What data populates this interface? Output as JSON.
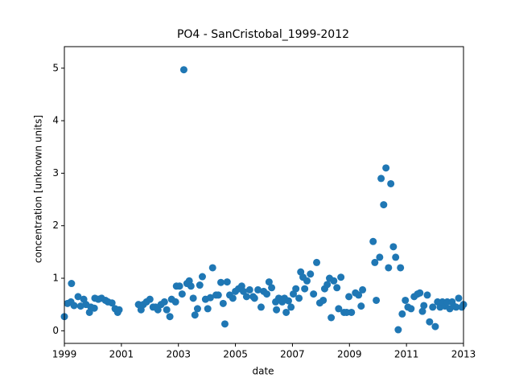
{
  "chart_data": {
    "type": "scatter",
    "title": "PO4 - SanCristobal_1999-2012",
    "x_label": "date",
    "y_label": "concentration [unknown units]",
    "color": "#1f77b4",
    "x": [
      1999.0,
      1999.11,
      1999.23,
      1999.25,
      1999.34,
      1999.48,
      1999.57,
      1999.68,
      1999.76,
      1999.88,
      1999.93,
      2000.05,
      2000.07,
      2000.19,
      2000.3,
      2000.44,
      2000.53,
      2000.67,
      2000.78,
      2000.87,
      2000.92,
      2001.6,
      2001.69,
      2001.77,
      2001.88,
      2002.0,
      2002.11,
      2002.2,
      2002.28,
      2002.39,
      2002.51,
      2002.59,
      2002.7,
      2002.76,
      2002.9,
      2002.93,
      2003.04,
      2003.13,
      2003.19,
      2003.3,
      2003.38,
      2003.44,
      2003.52,
      2003.58,
      2003.67,
      2003.75,
      2003.84,
      2003.95,
      2004.03,
      2004.12,
      2004.2,
      2004.32,
      2004.4,
      2004.49,
      2004.57,
      2004.63,
      2004.71,
      2004.8,
      2004.91,
      2005.0,
      2005.11,
      2005.22,
      2005.28,
      2005.39,
      2005.5,
      2005.62,
      2005.67,
      2005.79,
      2005.9,
      2005.99,
      2006.1,
      2006.18,
      2006.27,
      2006.41,
      2006.44,
      2006.52,
      2006.64,
      2006.72,
      2006.78,
      2006.86,
      2006.95,
      2007.03,
      2007.12,
      2007.23,
      2007.29,
      2007.37,
      2007.43,
      2007.51,
      2007.63,
      2007.74,
      2007.85,
      2007.96,
      2008.08,
      2008.13,
      2008.22,
      2008.3,
      2008.36,
      2008.45,
      2008.56,
      2008.62,
      2008.7,
      2008.81,
      2008.9,
      2008.98,
      2009.07,
      2009.21,
      2009.32,
      2009.41,
      2009.46,
      2009.83,
      2009.89,
      2009.94,
      2010.06,
      2010.11,
      2010.2,
      2010.28,
      2010.37,
      2010.45,
      2010.54,
      2010.62,
      2010.71,
      2010.79,
      2010.85,
      2010.96,
      2011.05,
      2011.16,
      2011.27,
      2011.39,
      2011.47,
      2011.56,
      2011.61,
      2011.73,
      2011.81,
      2011.92,
      2012.01,
      2012.09,
      2012.18,
      2012.26,
      2012.35,
      2012.43,
      2012.52,
      2012.6,
      2012.66,
      2012.74,
      2012.83,
      2012.94,
      2013.0
    ],
    "values": [
      0.27,
      0.52,
      0.55,
      0.9,
      0.48,
      0.65,
      0.47,
      0.6,
      0.5,
      0.35,
      0.45,
      0.43,
      0.62,
      0.6,
      0.62,
      0.58,
      0.55,
      0.53,
      0.42,
      0.35,
      0.4,
      0.5,
      0.4,
      0.5,
      0.55,
      0.6,
      0.45,
      0.45,
      0.4,
      0.5,
      0.55,
      0.4,
      0.27,
      0.6,
      0.55,
      0.85,
      0.85,
      0.7,
      4.97,
      0.9,
      0.95,
      0.85,
      0.62,
      0.3,
      0.42,
      0.87,
      1.03,
      0.6,
      0.42,
      0.63,
      1.2,
      0.68,
      0.68,
      0.92,
      0.52,
      0.13,
      0.93,
      0.68,
      0.62,
      0.75,
      0.8,
      0.85,
      0.75,
      0.65,
      0.78,
      0.65,
      0.62,
      0.78,
      0.45,
      0.75,
      0.7,
      0.93,
      0.82,
      0.55,
      0.4,
      0.62,
      0.55,
      0.62,
      0.35,
      0.57,
      0.45,
      0.7,
      0.8,
      0.62,
      1.12,
      1.02,
      0.8,
      0.95,
      1.08,
      0.7,
      1.3,
      0.53,
      0.58,
      0.8,
      0.88,
      1.0,
      0.25,
      0.95,
      0.82,
      0.42,
      1.02,
      0.35,
      0.35,
      0.65,
      0.35,
      0.72,
      0.68,
      0.47,
      0.78,
      1.7,
      1.3,
      0.58,
      1.4,
      2.9,
      2.4,
      3.1,
      1.2,
      2.8,
      1.6,
      1.4,
      0.02,
      1.2,
      0.32,
      0.58,
      0.45,
      0.42,
      0.65,
      0.7,
      0.72,
      0.37,
      0.48,
      0.68,
      0.17,
      0.45,
      0.08,
      0.55,
      0.45,
      0.55,
      0.47,
      0.55,
      0.42,
      0.55,
      0.47,
      0.45,
      0.62,
      0.45,
      0.5
    ],
    "xlim": [
      1999,
      2013
    ],
    "xticks": [
      1999,
      2001,
      2003,
      2005,
      2007,
      2009,
      2011,
      2013
    ],
    "ylim": [
      -0.24,
      5.41
    ],
    "yticks": [
      0,
      1,
      2,
      3,
      4,
      5
    ]
  }
}
